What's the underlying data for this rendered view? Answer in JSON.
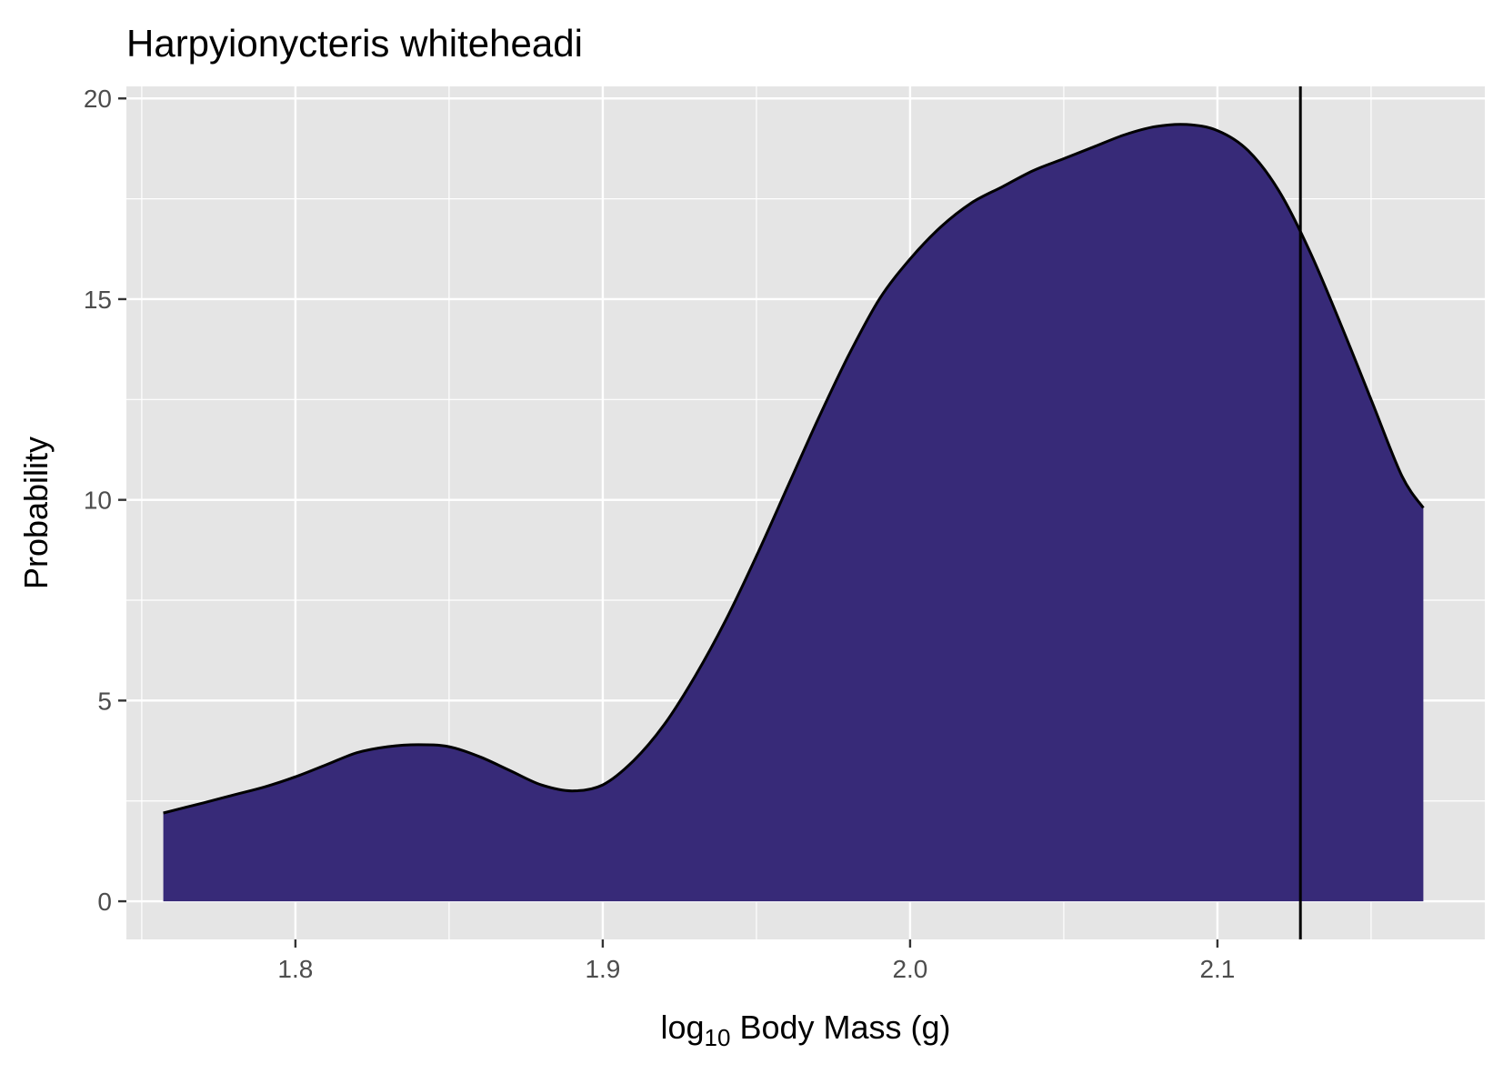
{
  "chart_data": {
    "type": "area",
    "title": "Harpyionycteris whiteheadi",
    "xlabel": {
      "prefix": "log",
      "subscript": "10",
      "suffix": " Body Mass (g)"
    },
    "ylabel": "Probability",
    "xlim": [
      1.745,
      2.187
    ],
    "ylim": [
      -0.95,
      20.3
    ],
    "x_ticks": [
      1.8,
      1.9,
      2.0,
      2.1
    ],
    "x_tick_labels": [
      "1.8",
      "1.9",
      "2.0",
      "2.1"
    ],
    "y_ticks": [
      0,
      5,
      10,
      15,
      20
    ],
    "y_tick_labels": [
      "0",
      "5",
      "10",
      "15",
      "20"
    ],
    "x_minor_ticks": [
      1.75,
      1.85,
      1.95,
      2.05,
      2.15
    ],
    "y_minor_ticks": [
      2.5,
      7.5,
      12.5,
      17.5
    ],
    "grid": true,
    "legend": "none",
    "fill_color": "#372a78",
    "line_color": "#000000",
    "background": "#e5e5e5",
    "vline_x": 2.127,
    "density": {
      "x": [
        1.757,
        1.77,
        1.78,
        1.79,
        1.8,
        1.81,
        1.82,
        1.83,
        1.84,
        1.85,
        1.86,
        1.87,
        1.88,
        1.89,
        1.9,
        1.91,
        1.92,
        1.93,
        1.94,
        1.95,
        1.96,
        1.97,
        1.98,
        1.99,
        2.0,
        2.01,
        2.02,
        2.03,
        2.04,
        2.05,
        2.06,
        2.07,
        2.08,
        2.09,
        2.1,
        2.11,
        2.12,
        2.13,
        2.14,
        2.15,
        2.16,
        2.167
      ],
      "y": [
        2.2,
        2.45,
        2.65,
        2.85,
        3.1,
        3.4,
        3.7,
        3.85,
        3.9,
        3.85,
        3.6,
        3.25,
        2.9,
        2.75,
        2.9,
        3.5,
        4.4,
        5.6,
        7.0,
        8.6,
        10.3,
        12.0,
        13.6,
        15.0,
        16.0,
        16.8,
        17.4,
        17.8,
        18.2,
        18.5,
        18.8,
        19.1,
        19.3,
        19.35,
        19.2,
        18.7,
        17.7,
        16.2,
        14.4,
        12.5,
        10.6,
        9.8
      ]
    }
  }
}
